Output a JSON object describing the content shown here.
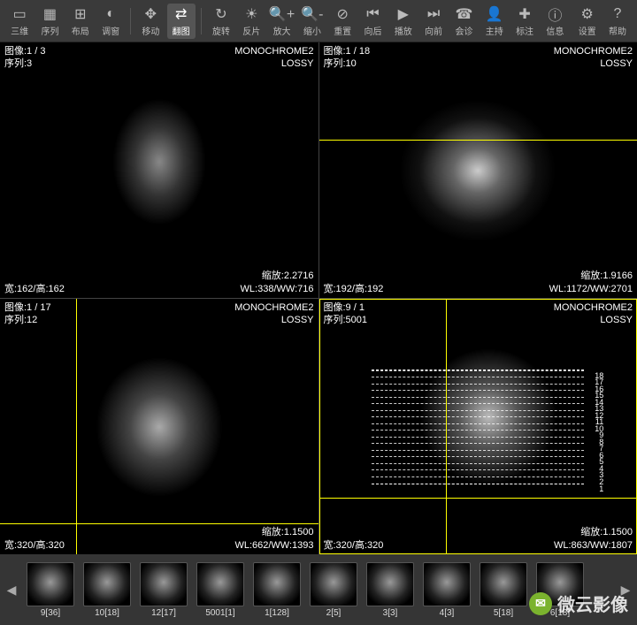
{
  "toolbar": {
    "items": [
      {
        "icon": "▭",
        "label": "三维"
      },
      {
        "icon": "▦",
        "label": "序列"
      },
      {
        "icon": "⊞",
        "label": "布局"
      },
      {
        "icon": "◐",
        "label": "调窗"
      },
      {
        "icon": "✥",
        "label": "移动"
      },
      {
        "icon": "⇄",
        "label": "翻图",
        "active": true
      },
      {
        "icon": "↻",
        "label": "旋转"
      },
      {
        "icon": "☀",
        "label": "反片"
      },
      {
        "icon": "🔍+",
        "label": "放大"
      },
      {
        "icon": "🔍-",
        "label": "缩小"
      },
      {
        "icon": "⊘",
        "label": "重置"
      },
      {
        "icon": "⏮",
        "label": "向后"
      },
      {
        "icon": "▶",
        "label": "播放"
      },
      {
        "icon": "⏭",
        "label": "向前"
      },
      {
        "icon": "☎",
        "label": "会诊"
      },
      {
        "icon": "👤",
        "label": "主持"
      },
      {
        "icon": "✚",
        "label": "标注"
      },
      {
        "icon": "ⓘ",
        "label": "信息"
      }
    ],
    "right": [
      {
        "icon": "⚙",
        "label": "设置"
      },
      {
        "icon": "?",
        "label": "帮助"
      }
    ]
  },
  "panels": [
    {
      "tl_image": "图像:1 / 3",
      "tl_series": "序列:3",
      "tr_mono": "MONOCHROME2",
      "tr_lossy": "LOSSY",
      "bl": "宽:162/高:162",
      "br_zoom": "缩放:2.2716",
      "br_wl": "WL:338/WW:716",
      "shape": "brain1"
    },
    {
      "tl_image": "图像:1 / 18",
      "tl_series": "序列:10",
      "tr_mono": "MONOCHROME2",
      "tr_lossy": "LOSSY",
      "bl": "宽:192/高:192",
      "br_zoom": "缩放:1.9166",
      "br_wl": "WL:1172/WW:2701",
      "shape": "brain2",
      "cross_h_top": "38%"
    },
    {
      "tl_image": "图像:1 / 17",
      "tl_series": "序列:12",
      "tr_mono": "MONOCHROME2",
      "tr_lossy": "LOSSY",
      "bl": "宽:320/高:320",
      "br_zoom": "缩放:1.1500",
      "br_wl": "WL:662/WW:1393",
      "shape": "brain3",
      "cross_h_top": "88%",
      "cross_v_left": "24%"
    },
    {
      "tl_image": "图像:9 / 1",
      "tl_series": "序列:5001",
      "tr_mono": "MONOCHROME2",
      "tr_lossy": "LOSSY",
      "bl": "宽:320/高:320",
      "br_zoom": "缩放:1.1500",
      "br_wl": "WL:863/WW:1807",
      "shape": "brain4",
      "cross_h_top": "78%",
      "cross_v_left": "40%",
      "selected": true,
      "slice_grid": true,
      "slice_labels": [
        "18",
        "17",
        "16",
        "15",
        "14",
        "13",
        "12",
        "11",
        "10",
        "9",
        "8",
        "7",
        "6",
        "5",
        "4",
        "3",
        "2",
        "1"
      ]
    }
  ],
  "thumbs": {
    "items": [
      {
        "label": "9[36]"
      },
      {
        "label": "10[18]"
      },
      {
        "label": "12[17]"
      },
      {
        "label": "5001[1]"
      },
      {
        "label": "1[128]"
      },
      {
        "label": "2[5]"
      },
      {
        "label": "3[3]"
      },
      {
        "label": "4[3]"
      },
      {
        "label": "5[18]"
      },
      {
        "label": "6[18]"
      }
    ]
  },
  "watermark": "微云影像",
  "colors": {
    "bg": "#2a2a2a",
    "panel_bg": "#000000",
    "crosshair": "#ffff00",
    "toolbar_bg": "#3a3a3a",
    "text": "#ffffff"
  }
}
